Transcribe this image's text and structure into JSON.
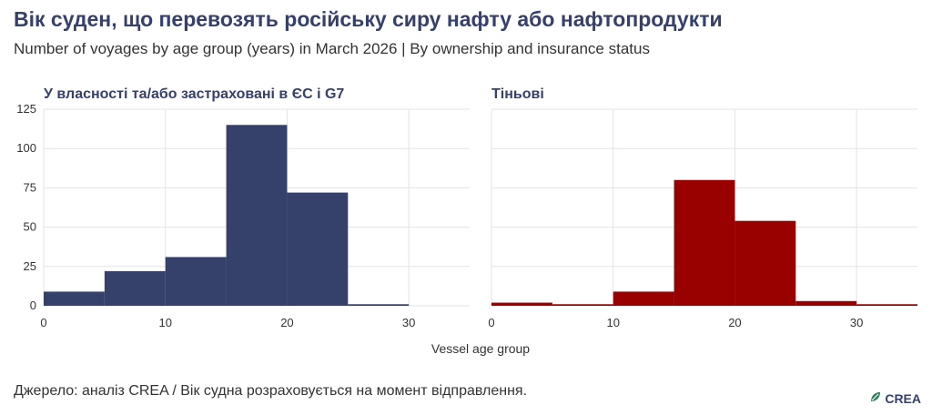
{
  "title": "Вік суден, що перевозять російську сиру нафту або нафтопродукти",
  "subtitle": "Number of voyages by age group (years) in March 2026 | By ownership and insurance status",
  "footer": "Джерело: аналіз CREA / Вік судна розраховується на момент відправлення.",
  "logo": {
    "text": "CREA",
    "icon": "crea-leaf-icon",
    "color": "#2e7d5b"
  },
  "chart_data": [
    {
      "type": "bar",
      "title": "У власності та/або застраховані в ЄС і G7",
      "xlabel": "Vessel age group",
      "ylabel": "",
      "color": "#35406b",
      "bins": [
        [
          0,
          5
        ],
        [
          5,
          10
        ],
        [
          10,
          15
        ],
        [
          15,
          20
        ],
        [
          20,
          25
        ],
        [
          25,
          30
        ]
      ],
      "values": [
        9,
        22,
        31,
        115,
        72,
        1
      ],
      "xlim": [
        0,
        35
      ],
      "ylim": [
        0,
        125
      ],
      "xticks": [
        0,
        10,
        20,
        30
      ],
      "yticks": [
        0,
        25,
        50,
        75,
        100,
        125
      ],
      "grid": true
    },
    {
      "type": "bar",
      "title": "Тіньові",
      "xlabel": "Vessel age group",
      "ylabel": "",
      "color": "#990000",
      "bins": [
        [
          0,
          5
        ],
        [
          5,
          10
        ],
        [
          10,
          15
        ],
        [
          15,
          20
        ],
        [
          20,
          25
        ],
        [
          25,
          30
        ],
        [
          30,
          35
        ]
      ],
      "values": [
        2,
        1,
        9,
        80,
        54,
        3,
        1
      ],
      "xlim": [
        0,
        35
      ],
      "ylim": [
        0,
        125
      ],
      "xticks": [
        0,
        10,
        20,
        30
      ],
      "yticks": [
        0,
        25,
        50,
        75,
        100,
        125
      ],
      "grid": true
    }
  ]
}
